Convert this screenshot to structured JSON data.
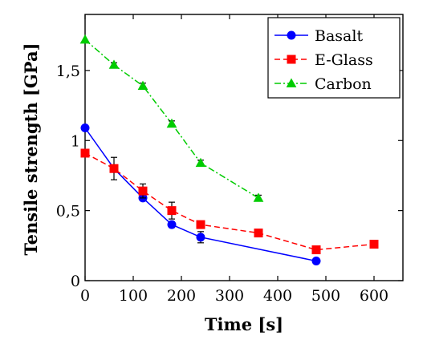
{
  "chart_data": {
    "type": "line",
    "title": "",
    "xlabel": "Time [s]",
    "ylabel": "Tensile strength [GPa]",
    "xlim": [
      0,
      660
    ],
    "ylim": [
      0,
      1.9
    ],
    "x_ticks": [
      0,
      100,
      200,
      300,
      400,
      500,
      600
    ],
    "x_tick_labels": [
      "0",
      "100",
      "200",
      "300",
      "400",
      "500",
      "600"
    ],
    "y_ticks": [
      0,
      0.5,
      1,
      1.5
    ],
    "y_tick_labels": [
      "0",
      "0,5",
      "1",
      "1,5"
    ],
    "grid": false,
    "legend_position": "top-right",
    "series": [
      {
        "name": "Basalt",
        "color": "#0000ff",
        "marker": "circle",
        "line_style": "solid",
        "x": [
          0,
          60,
          120,
          180,
          240,
          480
        ],
        "y": [
          1.09,
          0.8,
          0.59,
          0.4,
          0.31,
          0.14
        ],
        "err": [
          0,
          0,
          0.02,
          0.02,
          0.04,
          0
        ]
      },
      {
        "name": "E-Glass",
        "color": "#ff0000",
        "marker": "square",
        "line_style": "dashed",
        "x": [
          0,
          60,
          120,
          180,
          240,
          360,
          480,
          600
        ],
        "y": [
          0.91,
          0.8,
          0.64,
          0.5,
          0.4,
          0.34,
          0.22,
          0.26
        ],
        "err": [
          0,
          0.08,
          0.05,
          0.06,
          0,
          0,
          0,
          0
        ]
      },
      {
        "name": "Carbon",
        "color": "#00cc00",
        "marker": "triangle",
        "line_style": "dashdot",
        "x": [
          0,
          60,
          120,
          180,
          240,
          360
        ],
        "y": [
          1.72,
          1.54,
          1.39,
          1.12,
          0.84,
          0.59
        ],
        "err": [
          0,
          0.015,
          0.02,
          0.02,
          0.02,
          0.02
        ]
      }
    ]
  }
}
